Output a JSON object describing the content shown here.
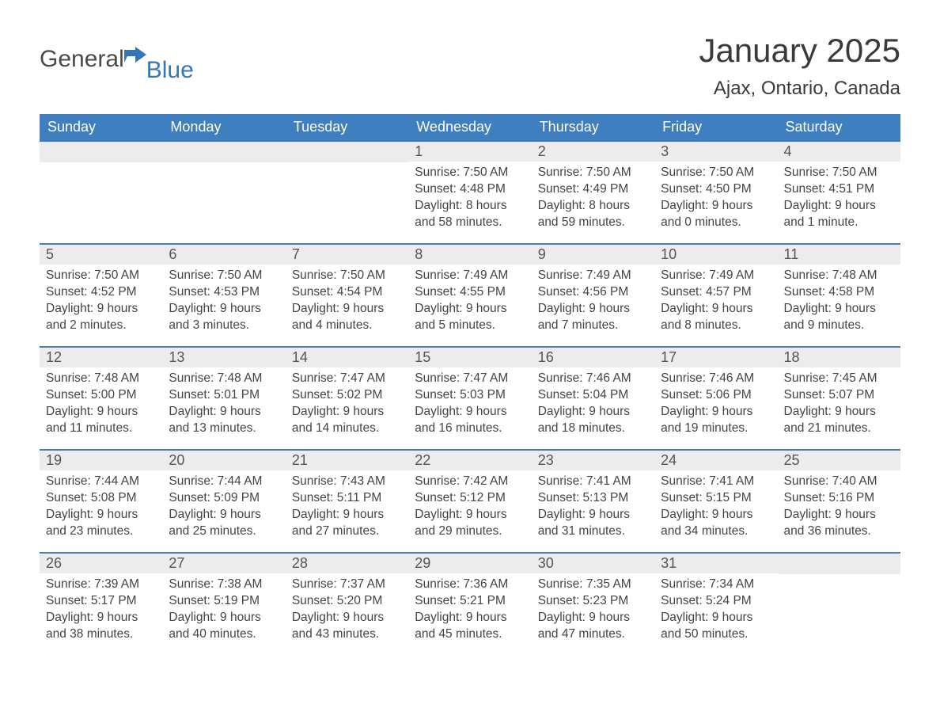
{
  "logo": {
    "text1": "General",
    "text2": "Blue"
  },
  "title": "January 2025",
  "location": "Ajax, Ontario, Canada",
  "colors": {
    "header_bg": "#3f7fbf",
    "header_text": "#ffffff",
    "daynum_bg": "#ececec",
    "row_border": "#3f7fbf",
    "body_text": "#444444",
    "logo_grey": "#4a4a4a",
    "logo_blue": "#3476b8"
  },
  "weekdays": [
    "Sunday",
    "Monday",
    "Tuesday",
    "Wednesday",
    "Thursday",
    "Friday",
    "Saturday"
  ],
  "weeks": [
    [
      {
        "num": "",
        "sunrise": "",
        "sunset": "",
        "daylight": ""
      },
      {
        "num": "",
        "sunrise": "",
        "sunset": "",
        "daylight": ""
      },
      {
        "num": "",
        "sunrise": "",
        "sunset": "",
        "daylight": ""
      },
      {
        "num": "1",
        "sunrise": "Sunrise: 7:50 AM",
        "sunset": "Sunset: 4:48 PM",
        "daylight": "Daylight: 8 hours and 58 minutes."
      },
      {
        "num": "2",
        "sunrise": "Sunrise: 7:50 AM",
        "sunset": "Sunset: 4:49 PM",
        "daylight": "Daylight: 8 hours and 59 minutes."
      },
      {
        "num": "3",
        "sunrise": "Sunrise: 7:50 AM",
        "sunset": "Sunset: 4:50 PM",
        "daylight": "Daylight: 9 hours and 0 minutes."
      },
      {
        "num": "4",
        "sunrise": "Sunrise: 7:50 AM",
        "sunset": "Sunset: 4:51 PM",
        "daylight": "Daylight: 9 hours and 1 minute."
      }
    ],
    [
      {
        "num": "5",
        "sunrise": "Sunrise: 7:50 AM",
        "sunset": "Sunset: 4:52 PM",
        "daylight": "Daylight: 9 hours and 2 minutes."
      },
      {
        "num": "6",
        "sunrise": "Sunrise: 7:50 AM",
        "sunset": "Sunset: 4:53 PM",
        "daylight": "Daylight: 9 hours and 3 minutes."
      },
      {
        "num": "7",
        "sunrise": "Sunrise: 7:50 AM",
        "sunset": "Sunset: 4:54 PM",
        "daylight": "Daylight: 9 hours and 4 minutes."
      },
      {
        "num": "8",
        "sunrise": "Sunrise: 7:49 AM",
        "sunset": "Sunset: 4:55 PM",
        "daylight": "Daylight: 9 hours and 5 minutes."
      },
      {
        "num": "9",
        "sunrise": "Sunrise: 7:49 AM",
        "sunset": "Sunset: 4:56 PM",
        "daylight": "Daylight: 9 hours and 7 minutes."
      },
      {
        "num": "10",
        "sunrise": "Sunrise: 7:49 AM",
        "sunset": "Sunset: 4:57 PM",
        "daylight": "Daylight: 9 hours and 8 minutes."
      },
      {
        "num": "11",
        "sunrise": "Sunrise: 7:48 AM",
        "sunset": "Sunset: 4:58 PM",
        "daylight": "Daylight: 9 hours and 9 minutes."
      }
    ],
    [
      {
        "num": "12",
        "sunrise": "Sunrise: 7:48 AM",
        "sunset": "Sunset: 5:00 PM",
        "daylight": "Daylight: 9 hours and 11 minutes."
      },
      {
        "num": "13",
        "sunrise": "Sunrise: 7:48 AM",
        "sunset": "Sunset: 5:01 PM",
        "daylight": "Daylight: 9 hours and 13 minutes."
      },
      {
        "num": "14",
        "sunrise": "Sunrise: 7:47 AM",
        "sunset": "Sunset: 5:02 PM",
        "daylight": "Daylight: 9 hours and 14 minutes."
      },
      {
        "num": "15",
        "sunrise": "Sunrise: 7:47 AM",
        "sunset": "Sunset: 5:03 PM",
        "daylight": "Daylight: 9 hours and 16 minutes."
      },
      {
        "num": "16",
        "sunrise": "Sunrise: 7:46 AM",
        "sunset": "Sunset: 5:04 PM",
        "daylight": "Daylight: 9 hours and 18 minutes."
      },
      {
        "num": "17",
        "sunrise": "Sunrise: 7:46 AM",
        "sunset": "Sunset: 5:06 PM",
        "daylight": "Daylight: 9 hours and 19 minutes."
      },
      {
        "num": "18",
        "sunrise": "Sunrise: 7:45 AM",
        "sunset": "Sunset: 5:07 PM",
        "daylight": "Daylight: 9 hours and 21 minutes."
      }
    ],
    [
      {
        "num": "19",
        "sunrise": "Sunrise: 7:44 AM",
        "sunset": "Sunset: 5:08 PM",
        "daylight": "Daylight: 9 hours and 23 minutes."
      },
      {
        "num": "20",
        "sunrise": "Sunrise: 7:44 AM",
        "sunset": "Sunset: 5:09 PM",
        "daylight": "Daylight: 9 hours and 25 minutes."
      },
      {
        "num": "21",
        "sunrise": "Sunrise: 7:43 AM",
        "sunset": "Sunset: 5:11 PM",
        "daylight": "Daylight: 9 hours and 27 minutes."
      },
      {
        "num": "22",
        "sunrise": "Sunrise: 7:42 AM",
        "sunset": "Sunset: 5:12 PM",
        "daylight": "Daylight: 9 hours and 29 minutes."
      },
      {
        "num": "23",
        "sunrise": "Sunrise: 7:41 AM",
        "sunset": "Sunset: 5:13 PM",
        "daylight": "Daylight: 9 hours and 31 minutes."
      },
      {
        "num": "24",
        "sunrise": "Sunrise: 7:41 AM",
        "sunset": "Sunset: 5:15 PM",
        "daylight": "Daylight: 9 hours and 34 minutes."
      },
      {
        "num": "25",
        "sunrise": "Sunrise: 7:40 AM",
        "sunset": "Sunset: 5:16 PM",
        "daylight": "Daylight: 9 hours and 36 minutes."
      }
    ],
    [
      {
        "num": "26",
        "sunrise": "Sunrise: 7:39 AM",
        "sunset": "Sunset: 5:17 PM",
        "daylight": "Daylight: 9 hours and 38 minutes."
      },
      {
        "num": "27",
        "sunrise": "Sunrise: 7:38 AM",
        "sunset": "Sunset: 5:19 PM",
        "daylight": "Daylight: 9 hours and 40 minutes."
      },
      {
        "num": "28",
        "sunrise": "Sunrise: 7:37 AM",
        "sunset": "Sunset: 5:20 PM",
        "daylight": "Daylight: 9 hours and 43 minutes."
      },
      {
        "num": "29",
        "sunrise": "Sunrise: 7:36 AM",
        "sunset": "Sunset: 5:21 PM",
        "daylight": "Daylight: 9 hours and 45 minutes."
      },
      {
        "num": "30",
        "sunrise": "Sunrise: 7:35 AM",
        "sunset": "Sunset: 5:23 PM",
        "daylight": "Daylight: 9 hours and 47 minutes."
      },
      {
        "num": "31",
        "sunrise": "Sunrise: 7:34 AM",
        "sunset": "Sunset: 5:24 PM",
        "daylight": "Daylight: 9 hours and 50 minutes."
      },
      {
        "num": "",
        "sunrise": "",
        "sunset": "",
        "daylight": ""
      }
    ]
  ]
}
